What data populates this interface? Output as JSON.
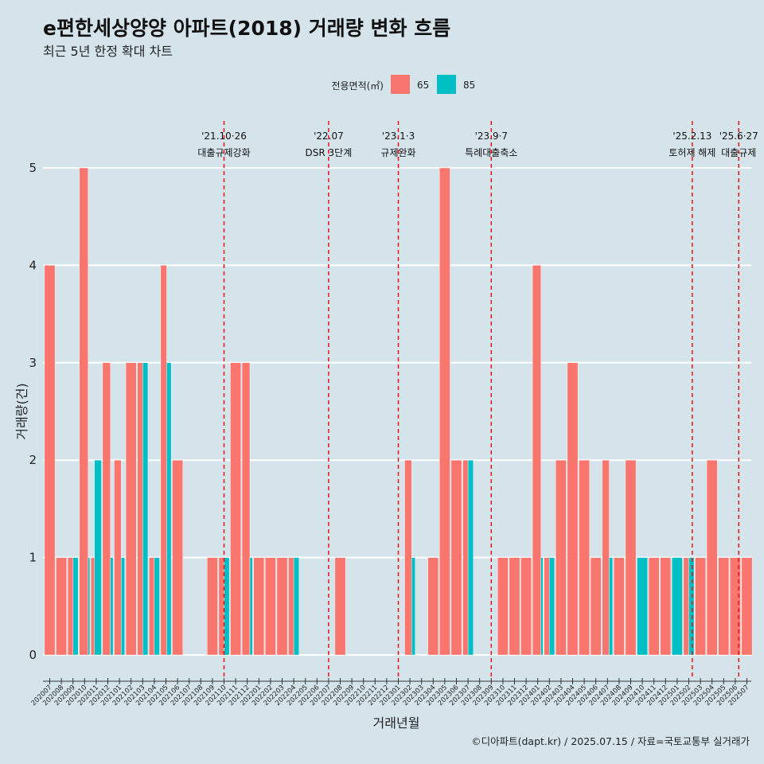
{
  "chart_data": {
    "type": "bar",
    "title": "e편한세상양양 아파트(2018) 거래량 변화 흐름",
    "subtitle": "최근 5년 한정 확대 차트",
    "xlabel": "거래년월",
    "ylabel": "거래량(건)",
    "ylim": [
      0,
      5
    ],
    "yticks": [
      0,
      1,
      2,
      3,
      4,
      5
    ],
    "legend_title": "전용면적(㎡)",
    "caption": "©디아파트(dapt.kr) / 2025.07.15 / 자료=국토교통부 실거래가",
    "categories": [
      "202007",
      "202008",
      "202009",
      "202010",
      "202011",
      "202012",
      "202101",
      "202102",
      "202103",
      "202104",
      "202105",
      "202106",
      "202107",
      "202108",
      "202109",
      "202110",
      "202111",
      "202112",
      "202201",
      "202202",
      "202203",
      "202204",
      "202205",
      "202206",
      "202207",
      "202208",
      "202209",
      "202210",
      "202211",
      "202212",
      "202301",
      "202302",
      "202303",
      "202304",
      "202305",
      "202306",
      "202307",
      "202308",
      "202309",
      "202310",
      "202311",
      "202312",
      "202401",
      "202402",
      "202403",
      "202404",
      "202405",
      "202406",
      "202407",
      "202408",
      "202409",
      "202410",
      "202411",
      "202412",
      "202501",
      "202502",
      "202503",
      "202504",
      "202505",
      "202506",
      "202507"
    ],
    "series": [
      {
        "name": "65",
        "color": "#f8766d",
        "values": [
          4,
          1,
          1,
          5,
          1,
          3,
          2,
          3,
          3,
          1,
          4,
          2,
          0,
          0,
          1,
          1,
          3,
          3,
          1,
          1,
          1,
          1,
          0,
          0,
          0,
          1,
          0,
          0,
          0,
          0,
          0,
          2,
          0,
          1,
          5,
          2,
          2,
          0,
          0,
          1,
          1,
          1,
          4,
          1,
          2,
          3,
          2,
          1,
          2,
          1,
          2,
          0,
          1,
          1,
          0,
          1,
          1,
          2,
          1,
          1,
          1
        ]
      },
      {
        "name": "85",
        "color": "#00bfc4",
        "values": [
          0,
          0,
          1,
          1,
          2,
          1,
          1,
          0,
          3,
          1,
          3,
          0,
          0,
          0,
          0,
          1,
          0,
          1,
          0,
          0,
          0,
          1,
          0,
          0,
          0,
          0,
          0,
          0,
          0,
          0,
          0,
          1,
          0,
          0,
          0,
          0,
          2,
          0,
          0,
          0,
          0,
          0,
          1,
          1,
          0,
          0,
          0,
          0,
          1,
          0,
          0,
          1,
          0,
          0,
          1,
          1,
          0,
          0,
          0,
          0,
          0
        ]
      }
    ],
    "events": [
      {
        "date_label": "'21.10·26",
        "text": "대출규제강화",
        "position": 15.0
      },
      {
        "date_label": "'22.07",
        "text": "DSR 3단계",
        "position": 24.0
      },
      {
        "date_label": "'23.1·3",
        "text": "규제완화",
        "position": 30.0
      },
      {
        "date_label": "'23.9·7",
        "text": "특례대출축소",
        "position": 38.0
      },
      {
        "date_label": "'25.2.13",
        "text": "토허제 해제",
        "position": 55.3
      },
      {
        "date_label": "'25.6·27",
        "text": "대출규제",
        "position": 59.3
      }
    ]
  }
}
